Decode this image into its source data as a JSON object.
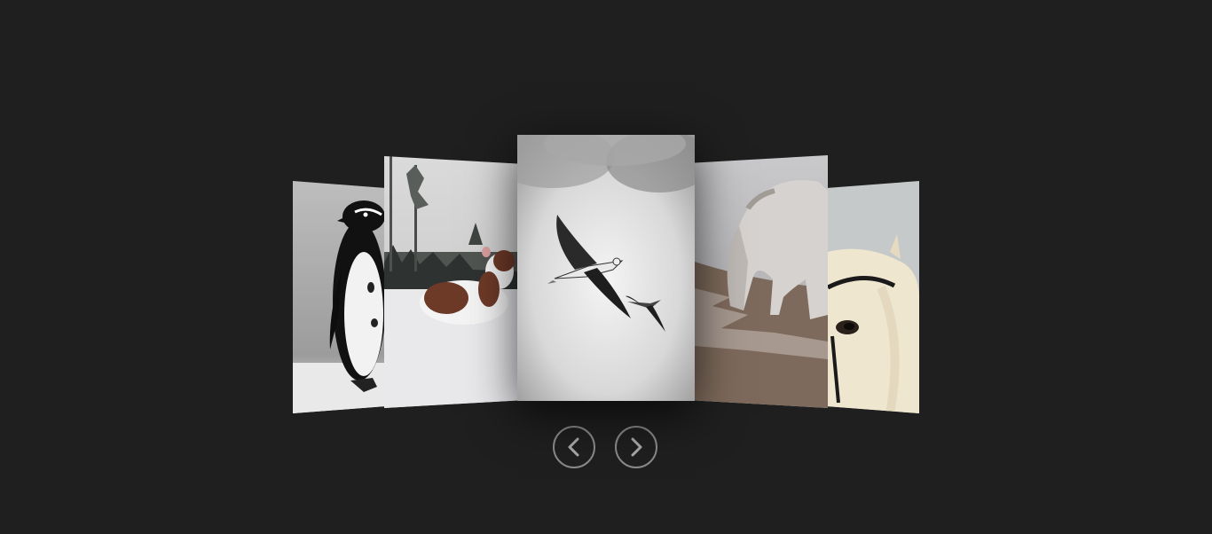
{
  "gallery": {
    "slides": [
      {
        "subject": "penguin-photo"
      },
      {
        "subject": "dog-in-snow-photo"
      },
      {
        "subject": "flying-gulls-photo"
      },
      {
        "subject": "grazing-horse-photo"
      },
      {
        "subject": "horse-head-photo"
      }
    ],
    "active_index": 2
  },
  "controls": {
    "prev_icon": "chevron-left-icon",
    "next_icon": "chevron-right-icon"
  },
  "colors": {
    "background": "#1f1f1f",
    "control_border": "#8a8a8a"
  }
}
